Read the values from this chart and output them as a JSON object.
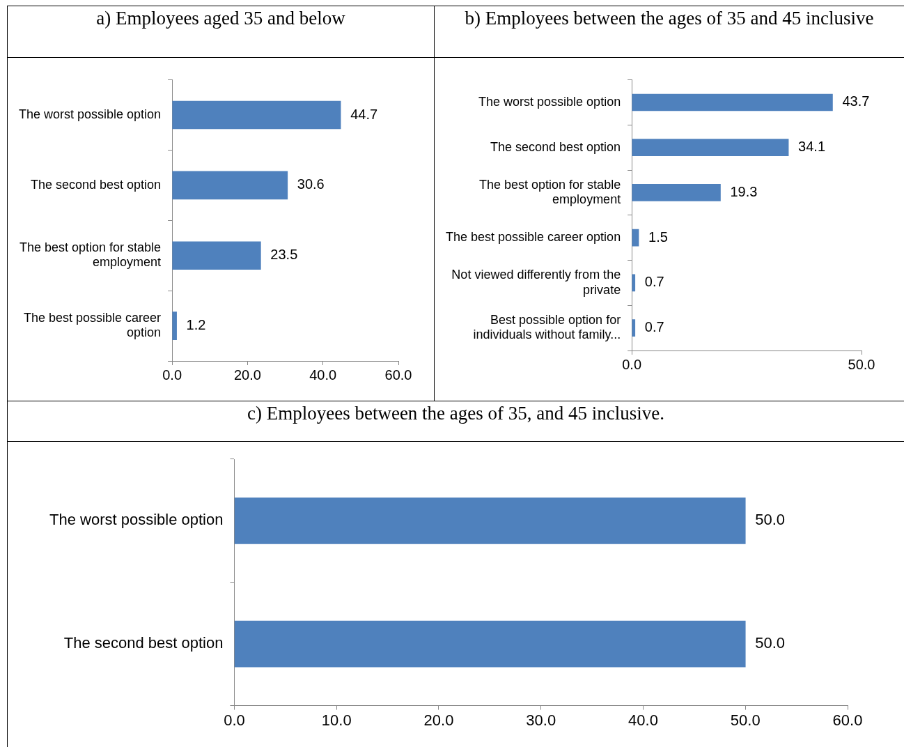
{
  "chart_data": [
    {
      "type": "bar",
      "orientation": "horizontal",
      "title": "a) Employees aged 35 and below",
      "categories": [
        "The worst possible option",
        "The second best option",
        "The best option for stable employment",
        "The best possible career option"
      ],
      "values": [
        44.7,
        30.6,
        23.5,
        1.2
      ],
      "color": "#4f81bd",
      "value_labels": [
        "44.7",
        "30.6",
        "23.5",
        "1.2"
      ],
      "xlim": [
        0,
        60
      ],
      "xticks": [
        {
          "value": 0,
          "label": "0.0"
        },
        {
          "value": 20,
          "label": "20.0"
        },
        {
          "value": 40,
          "label": "40.0"
        },
        {
          "value": 60,
          "label": "60.0"
        }
      ],
      "grid": false,
      "legend": false
    },
    {
      "type": "bar",
      "orientation": "horizontal",
      "title": "b) Employees between the ages of 35 and 45 inclusive",
      "categories": [
        "The worst possible option",
        "The second best option",
        "The best option for stable employment",
        "The best possible career option",
        "Not viewed differently from the private",
        "Best possible option for individuals without family..."
      ],
      "values": [
        43.7,
        34.1,
        19.3,
        1.5,
        0.7,
        0.7
      ],
      "color": "#4f81bd",
      "value_labels": [
        "43.7",
        "34.1",
        "19.3",
        "1.5",
        "0.7",
        "0.7"
      ],
      "xlim": [
        0,
        50
      ],
      "xticks": [
        {
          "value": 0,
          "label": "0.0"
        },
        {
          "value": 50,
          "label": "50.0"
        }
      ],
      "grid": false,
      "legend": false
    },
    {
      "type": "bar",
      "orientation": "horizontal",
      "title": "c) Employees between the ages of 35, and 45 inclusive.",
      "categories": [
        "The worst possible option",
        "The second best option"
      ],
      "values": [
        50,
        50
      ],
      "color": "#4f81bd",
      "value_labels": [
        "50.0",
        "50.0"
      ],
      "xlim": [
        0,
        60
      ],
      "xticks": [
        {
          "value": 0,
          "label": "0.0"
        },
        {
          "value": 10,
          "label": "10.0"
        },
        {
          "value": 20,
          "label": "20.0"
        },
        {
          "value": 30,
          "label": "30.0"
        },
        {
          "value": 40,
          "label": "40.0"
        },
        {
          "value": 50,
          "label": "50.0"
        },
        {
          "value": 60,
          "label": "60.0"
        }
      ],
      "grid": false,
      "legend": false
    }
  ]
}
